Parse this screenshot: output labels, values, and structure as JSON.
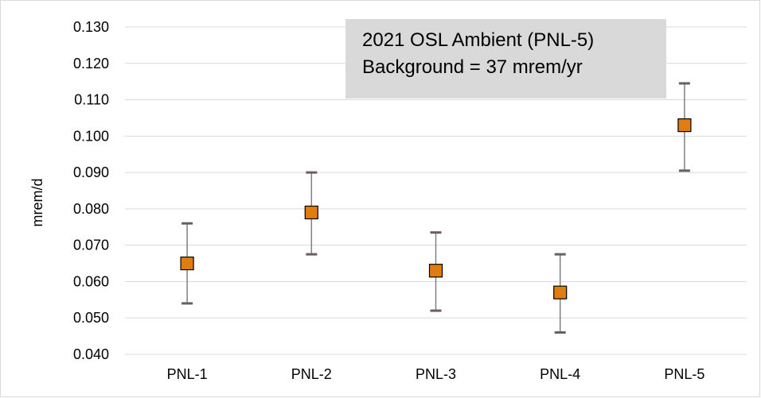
{
  "chart_data": {
    "type": "scatter",
    "title": "",
    "xlabel": "",
    "ylabel": "mrem/d",
    "categories": [
      "PNL-1",
      "PNL-2",
      "PNL-3",
      "PNL-4",
      "PNL-5"
    ],
    "series": [
      {
        "values": [
          0.065,
          0.079,
          0.063,
          0.057,
          0.103
        ],
        "error_low": [
          0.054,
          0.0675,
          0.052,
          0.046,
          0.0905
        ],
        "error_high": [
          0.076,
          0.09,
          0.0735,
          0.0675,
          0.1145
        ]
      }
    ],
    "ylim": [
      0.04,
      0.13
    ],
    "yticks": [
      "0.040",
      "0.050",
      "0.060",
      "0.070",
      "0.080",
      "0.090",
      "0.100",
      "0.110",
      "0.120",
      "0.130"
    ],
    "grid": true,
    "annotation": {
      "line1": "2021 OSL Ambient (PNL-5)",
      "line2": "Background = 37 mrem/yr"
    }
  },
  "colors": {
    "marker_fill": "#e07d10",
    "marker_stroke": "#000000",
    "errorbar": "#808080",
    "errorcap": "#6b5e63",
    "grid": "#d9d9d9",
    "annotation_bg": "#d9d9d9"
  }
}
